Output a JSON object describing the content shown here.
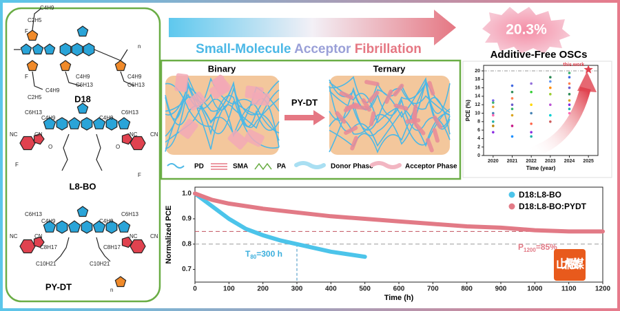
{
  "header": {
    "arrow_text": [
      "Small-Molecule ",
      "Acceptor ",
      "Fibrillation"
    ],
    "badge": "20.3%",
    "subtitle": "Additive-Free OSCs"
  },
  "molecules": [
    {
      "name": "D18",
      "labels": [
        "C4H9",
        "C2H5",
        "F",
        "C4H9",
        "C6H13",
        "C4H9",
        "C6H13",
        "F",
        "C4H9",
        "C2H5",
        "n"
      ]
    },
    {
      "name": "L8-BO",
      "labels": [
        "C6H13",
        "C4H9",
        "C4H9",
        "C6H13",
        "NC",
        "CN",
        "NC",
        "CN",
        "F",
        "F",
        "O",
        "O"
      ]
    },
    {
      "name": "PY-DT",
      "labels": [
        "C6H13",
        "C4H9",
        "C4H9",
        "C6H13",
        "C8H17",
        "C8H17",
        "C10H21",
        "C10H21",
        "NC",
        "CN",
        "NC",
        "CN",
        "n"
      ]
    }
  ],
  "morphology": {
    "left": "Binary",
    "right": "Ternary",
    "arrow": "PY-DT",
    "legend": [
      "PD",
      "SMA",
      "PA",
      "Donor Phase",
      "Acceptor Phase"
    ]
  },
  "watermark": "山大融媒",
  "chart_data": [
    {
      "type": "line",
      "xlabel": "Time (h)",
      "ylabel": "Normalized PCE",
      "xlim": [
        0,
        1200
      ],
      "ylim": [
        0.65,
        1.025
      ],
      "xticks": [
        0,
        100,
        200,
        300,
        400,
        500,
        600,
        700,
        800,
        900,
        1000,
        1100,
        1200
      ],
      "yticks": [
        0.7,
        0.8,
        0.9,
        {
          "value": 1,
          "label": "1.0"
        }
      ],
      "series": [
        {
          "name": "D18:L8-BO",
          "color": "#4cc4ea",
          "x": [
            0,
            20,
            50,
            100,
            150,
            200,
            250,
            300,
            350,
            400,
            450,
            500
          ],
          "values": [
            1.0,
            0.98,
            0.95,
            0.9,
            0.86,
            0.835,
            0.815,
            0.8,
            0.785,
            0.77,
            0.76,
            0.75
          ]
        },
        {
          "name": "D18:L8-BO:PYDT",
          "color": "#e27a86",
          "x": [
            0,
            50,
            100,
            200,
            300,
            400,
            500,
            600,
            700,
            800,
            900,
            1000,
            1100,
            1200
          ],
          "values": [
            1.0,
            0.975,
            0.96,
            0.94,
            0.925,
            0.91,
            0.9,
            0.89,
            0.88,
            0.87,
            0.865,
            0.855,
            0.85,
            0.85
          ]
        }
      ],
      "reference_lines": {
        "y": [
          0.85,
          0.8
        ],
        "x": [
          300
        ]
      },
      "annotations": [
        {
          "main": "T",
          "sub": "80",
          "rest": "=300 h"
        },
        {
          "main": "P",
          "sub": "1200",
          "rest": "=85%"
        }
      ]
    },
    {
      "type": "scatter",
      "xlabel": "Time (year)",
      "ylabel": "PCE (%)",
      "xlim": [
        2019.5,
        2025.5
      ],
      "ylim": [
        0,
        21.3
      ],
      "xticks": [
        2020,
        2021,
        2022,
        2023,
        2024,
        2025
      ],
      "yticks": [
        0,
        2,
        4,
        6,
        8,
        10,
        12,
        14,
        16,
        18,
        20
      ],
      "series": [
        {
          "name": null,
          "x": [
            2020,
            2020,
            2020,
            2020,
            2020,
            2020,
            2020,
            2020,
            2021,
            2021,
            2021,
            2021,
            2021,
            2021,
            2021,
            2021,
            2022,
            2022,
            2022,
            2022,
            2022,
            2022,
            2022,
            2023,
            2023,
            2023,
            2023,
            2023,
            2023,
            2023,
            2024,
            2024,
            2024,
            2024,
            2024,
            2024,
            2024,
            2024,
            2024
          ],
          "values": [
            13,
            12.5,
            11.5,
            10,
            9.5,
            8,
            7,
            5.5,
            16.5,
            15,
            13.5,
            12,
            11,
            9.5,
            7,
            4.5,
            17,
            15,
            12,
            10,
            7.5,
            5.5,
            4.5,
            18.5,
            17.5,
            16,
            14.5,
            12,
            9.5,
            8,
            19.5,
            18.5,
            17,
            16,
            14.5,
            13,
            12,
            11,
            10
          ],
          "colors": [
            "#7b68ee",
            "#3cb371",
            "#e9a23b",
            "#4682b4",
            "#ff69b4",
            "#20b2aa",
            "#b8860b",
            "#8a2be2",
            "#4169e1",
            "#2e8b57",
            "#ff7f50",
            "#6a5acd",
            "#3cb371",
            "#daa520",
            "#c71585",
            "#1e90ff",
            "#9370db",
            "#32cd32",
            "#ffd700",
            "#4682b4",
            "#ff6347",
            "#8a2be2",
            "#20b2aa",
            "#2e8b57",
            "#6495ed",
            "#ff8c00",
            "#9acd32",
            "#ba55d3",
            "#00ced1",
            "#cd5c5c",
            "#3cb371",
            "#4169e1",
            "#ff7f50",
            "#6a5acd",
            "#2e8b57",
            "#daa520",
            "#8a2be2",
            "#20b2aa",
            "#ff69b4"
          ]
        },
        {
          "name": "this work",
          "x": [
            2025
          ],
          "values": [
            20.3
          ],
          "color": "#e0424f"
        }
      ],
      "reference_lines": {
        "y": [
          20
        ]
      }
    }
  ]
}
